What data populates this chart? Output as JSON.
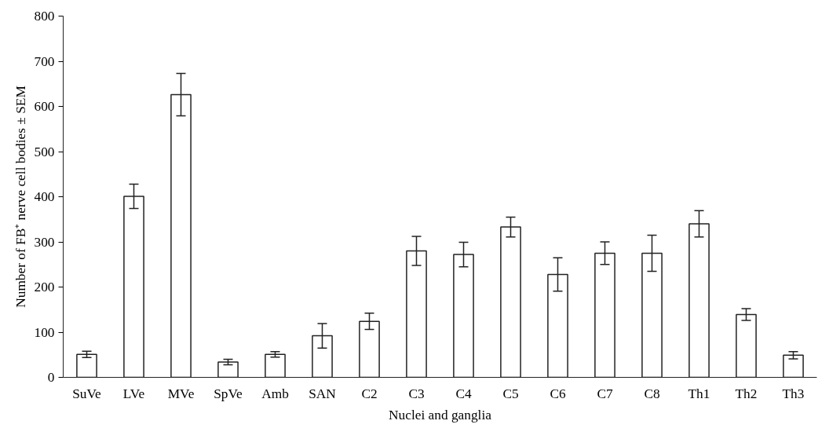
{
  "chart_data": {
    "type": "bar",
    "xlabel": "Nuclei and ganglia",
    "ylabel": "Number of FB⁺ nerve cell bodies ± SEM",
    "categories": [
      "SuVe",
      "LVe",
      "MVe",
      "SpVe",
      "Amb",
      "SAN",
      "C2",
      "C3",
      "C4",
      "C5",
      "C6",
      "C7",
      "C8",
      "Th1",
      "Th2",
      "Th3"
    ],
    "values": [
      51,
      401,
      626,
      34,
      51,
      92,
      124,
      280,
      272,
      333,
      228,
      275,
      275,
      340,
      139,
      49
    ],
    "errors": [
      7,
      27,
      47,
      6,
      6,
      27,
      18,
      32,
      27,
      22,
      37,
      25,
      40,
      29,
      13,
      8
    ],
    "color": "#ffffff",
    "ylim": [
      0,
      800
    ],
    "yticks": [
      0,
      100,
      200,
      300,
      400,
      500,
      600,
      700,
      800
    ],
    "grid": false
  }
}
